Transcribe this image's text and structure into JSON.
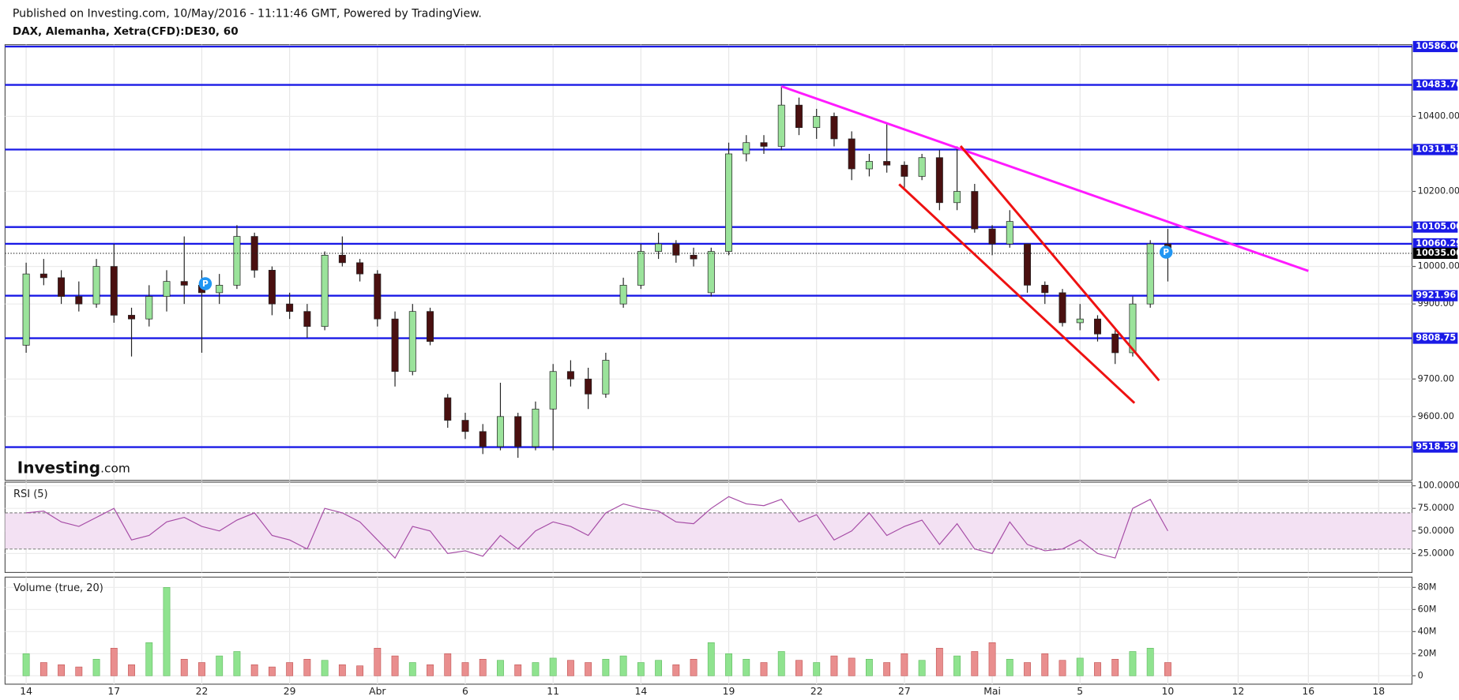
{
  "header": {
    "published": "Published on Investing.com, 10/May/2016 - 11:11:46 GMT, Powered by TradingView.",
    "symbol": "DAX, Alemanha, Xetra(CFD):DE30, 60"
  },
  "logo": {
    "brand": "Investing",
    "suffix": ".com"
  },
  "chart_data": [
    {
      "type": "candlestick",
      "x": [
        0,
        1,
        2,
        3,
        4,
        5,
        6,
        7,
        8,
        9,
        10,
        11,
        12,
        13,
        14,
        15,
        16,
        17,
        18,
        19,
        20,
        21,
        22,
        23,
        24,
        25,
        26,
        27,
        28,
        29,
        30,
        31,
        32,
        33,
        34,
        35,
        36,
        37,
        38,
        39,
        40,
        41,
        42,
        43,
        44,
        45,
        46,
        47,
        48,
        49,
        50,
        51,
        52,
        53,
        54,
        55,
        56,
        57,
        58,
        59,
        60,
        61,
        62,
        63,
        64,
        65
      ],
      "open": [
        9790,
        9980,
        9970,
        9920,
        9900,
        10000,
        9870,
        9860,
        9920,
        9960,
        9950,
        9930,
        9950,
        10080,
        9990,
        9900,
        9880,
        9840,
        10030,
        10010,
        9980,
        9860,
        9720,
        9880,
        9650,
        9590,
        9560,
        9520,
        9600,
        9520,
        9620,
        9720,
        9700,
        9660,
        9900,
        9950,
        10040,
        10060,
        10030,
        9930,
        10040,
        10300,
        10330,
        10320,
        10430,
        10370,
        10400,
        10340,
        10260,
        10280,
        10270,
        10240,
        10290,
        10170,
        10200,
        10100,
        10060,
        10060,
        9950,
        9930,
        9850,
        9860,
        9820,
        9770,
        9900,
        10060
      ],
      "high": [
        10010,
        10020,
        9990,
        9960,
        10020,
        10060,
        9890,
        9950,
        9990,
        10080,
        9990,
        9980,
        10110,
        10090,
        10000,
        9930,
        9900,
        10040,
        10080,
        10020,
        9990,
        9880,
        9900,
        9890,
        9660,
        9610,
        9580,
        9690,
        9610,
        9640,
        9740,
        9750,
        9730,
        9770,
        9970,
        10060,
        10090,
        10070,
        10050,
        10050,
        10330,
        10350,
        10350,
        10480,
        10450,
        10420,
        10410,
        10360,
        10300,
        10380,
        10280,
        10300,
        10310,
        10320,
        10220,
        10110,
        10150,
        10060,
        9960,
        9940,
        9900,
        9870,
        9830,
        9920,
        10070,
        10100
      ],
      "low": [
        9770,
        9950,
        9900,
        9880,
        9890,
        9850,
        9760,
        9840,
        9880,
        9900,
        9770,
        9900,
        9940,
        9970,
        9870,
        9860,
        9810,
        9830,
        10000,
        9960,
        9840,
        9680,
        9710,
        9790,
        9570,
        9540,
        9500,
        9510,
        9490,
        9510,
        9510,
        9680,
        9620,
        9650,
        9890,
        9940,
        10020,
        10010,
        10000,
        9920,
        10030,
        10280,
        10300,
        10310,
        10350,
        10340,
        10320,
        10230,
        10240,
        10250,
        10210,
        10230,
        10150,
        10150,
        10090,
        10030,
        10050,
        9930,
        9900,
        9840,
        9830,
        9800,
        9740,
        9760,
        9890,
        9960
      ],
      "close": [
        9980,
        9970,
        9920,
        9900,
        10000,
        9870,
        9860,
        9920,
        9960,
        9950,
        9930,
        9950,
        10080,
        9990,
        9900,
        9880,
        9840,
        10030,
        10010,
        9980,
        9860,
        9720,
        9880,
        9800,
        9590,
        9560,
        9520,
        9600,
        9520,
        9620,
        9720,
        9700,
        9660,
        9750,
        9950,
        10040,
        10060,
        10030,
        10020,
        10040,
        10300,
        10330,
        10320,
        10430,
        10370,
        10400,
        10340,
        10260,
        10280,
        10270,
        10240,
        10290,
        10170,
        10200,
        10100,
        10060,
        10120,
        9950,
        9930,
        9850,
        9860,
        9820,
        9770,
        9900,
        10060,
        10035
      ],
      "up_color": "#9be39b",
      "down_color": "#4a1010",
      "xlim": [
        -1.2,
        78.9
      ],
      "ylim": [
        9430,
        10591
      ],
      "yticks": [
        {
          "value": 10400,
          "label": "10400.00"
        },
        {
          "value": 10200,
          "label": "10200.00"
        },
        {
          "value": 10000,
          "label": "10000.00"
        },
        {
          "value": 9900,
          "label": "9900.00"
        },
        {
          "value": 9700,
          "label": "9700.00"
        },
        {
          "value": 9600,
          "label": "9600.00"
        }
      ],
      "levels": [
        {
          "value": 10586,
          "label": "10586.00"
        },
        {
          "value": 10483.76,
          "label": "10483.76"
        },
        {
          "value": 10311.53,
          "label": "10311.53"
        },
        {
          "value": 10105,
          "label": "10105.00"
        },
        {
          "value": 10060.29,
          "label": "10060.29"
        },
        {
          "value": 9921.96,
          "label": "9921.96"
        },
        {
          "value": 9808.75,
          "label": "9808.75"
        },
        {
          "value": 9518.59,
          "label": "9518.59"
        }
      ],
      "level_color": "#1a1ae6",
      "last_price": {
        "value": 10035,
        "label": "10035.00"
      },
      "trendlines": [
        {
          "color": "#ff1aff",
          "points": [
            [
              43,
              10480
            ],
            [
              73,
              9988
            ]
          ]
        },
        {
          "color": "#ee1111",
          "points": [
            [
              53.2,
              10321
            ],
            [
              64.5,
              9696
            ]
          ]
        },
        {
          "color": "#ee1111",
          "points": [
            [
              49.7,
              10219
            ],
            [
              63.1,
              9636
            ]
          ]
        }
      ],
      "markers": [
        {
          "x": 10.2,
          "y": 9954,
          "label": "P"
        },
        {
          "x": 64.9,
          "y": 10038,
          "label": "P"
        }
      ]
    },
    {
      "type": "line",
      "title": "RSI (5)",
      "x": [
        0,
        1,
        2,
        3,
        4,
        5,
        6,
        7,
        8,
        9,
        10,
        11,
        12,
        13,
        14,
        15,
        16,
        17,
        18,
        19,
        20,
        21,
        22,
        23,
        24,
        25,
        26,
        27,
        28,
        29,
        30,
        31,
        32,
        33,
        34,
        35,
        36,
        37,
        38,
        39,
        40,
        41,
        42,
        43,
        44,
        45,
        46,
        47,
        48,
        49,
        50,
        51,
        52,
        53,
        54,
        55,
        56,
        57,
        58,
        59,
        60,
        61,
        62,
        63,
        64,
        65
      ],
      "values": [
        70,
        72,
        60,
        55,
        65,
        75,
        40,
        45,
        60,
        65,
        55,
        50,
        62,
        70,
        45,
        40,
        30,
        75,
        70,
        60,
        40,
        20,
        55,
        50,
        25,
        28,
        22,
        45,
        30,
        50,
        60,
        55,
        45,
        70,
        80,
        75,
        72,
        60,
        58,
        75,
        88,
        80,
        78,
        85,
        60,
        68,
        40,
        50,
        70,
        45,
        55,
        62,
        35,
        58,
        30,
        25,
        60,
        35,
        28,
        30,
        40,
        25,
        20,
        75,
        85,
        50
      ],
      "color": "#a64ca6",
      "bands": [
        70,
        30
      ],
      "band_color": "#f3e1f3",
      "ylim": [
        4,
        104
      ],
      "yticks": [
        {
          "value": 100,
          "label": "100.0000"
        },
        {
          "value": 75,
          "label": "75.0000"
        },
        {
          "value": 50,
          "label": "50.0000"
        },
        {
          "value": 25,
          "label": "25.0000"
        }
      ]
    },
    {
      "type": "bar",
      "title": "Volume (true, 20)",
      "x": [
        0,
        1,
        2,
        3,
        4,
        5,
        6,
        7,
        8,
        9,
        10,
        11,
        12,
        13,
        14,
        15,
        16,
        17,
        18,
        19,
        20,
        21,
        22,
        23,
        24,
        25,
        26,
        27,
        28,
        29,
        30,
        31,
        32,
        33,
        34,
        35,
        36,
        37,
        38,
        39,
        40,
        41,
        42,
        43,
        44,
        45,
        46,
        47,
        48,
        49,
        50,
        51,
        52,
        53,
        54,
        55,
        56,
        57,
        58,
        59,
        60,
        61,
        62,
        63,
        64,
        65
      ],
      "values": [
        20000000,
        12000000,
        10000000,
        8000000,
        15000000,
        25000000,
        10000000,
        30000000,
        80000000,
        15000000,
        12000000,
        18000000,
        22000000,
        10000000,
        8000000,
        12000000,
        15000000,
        14000000,
        10000000,
        9000000,
        25000000,
        18000000,
        12000000,
        10000000,
        20000000,
        12000000,
        15000000,
        14000000,
        10000000,
        12000000,
        16000000,
        14000000,
        12000000,
        15000000,
        18000000,
        12000000,
        14000000,
        10000000,
        15000000,
        30000000,
        20000000,
        15000000,
        12000000,
        22000000,
        14000000,
        12000000,
        18000000,
        16000000,
        15000000,
        12000000,
        20000000,
        14000000,
        25000000,
        18000000,
        22000000,
        30000000,
        15000000,
        12000000,
        20000000,
        14000000,
        16000000,
        12000000,
        15000000,
        22000000,
        25000000,
        12000000
      ],
      "up_color": "#8fe38f",
      "down_color": "#e98e8e",
      "ylim": [
        -7600000,
        89300000
      ],
      "yticks": [
        0,
        {
          "value": 20000000,
          "label": "20M"
        },
        {
          "value": 40000000,
          "label": "40M"
        },
        {
          "value": 60000000,
          "label": "60M"
        },
        {
          "value": 80000000,
          "label": "80M"
        }
      ],
      "xticks": [
        {
          "value": 0,
          "label": "14"
        },
        {
          "value": 5,
          "label": "17"
        },
        {
          "value": 10,
          "label": "22"
        },
        {
          "value": 15,
          "label": "29"
        },
        {
          "value": 20,
          "label": "Abr"
        },
        {
          "value": 25,
          "label": "6"
        },
        {
          "value": 30,
          "label": "11"
        },
        {
          "value": 35,
          "label": "14"
        },
        {
          "value": 40,
          "label": "19"
        },
        {
          "value": 45,
          "label": "22"
        },
        {
          "value": 50,
          "label": "27"
        },
        {
          "value": 55,
          "label": "Mai"
        },
        {
          "value": 60,
          "label": "5"
        },
        {
          "value": 65,
          "label": "10"
        },
        {
          "value": 69,
          "label": "12"
        },
        {
          "value": 73,
          "label": "16"
        },
        {
          "value": 77,
          "label": "18"
        }
      ]
    }
  ]
}
